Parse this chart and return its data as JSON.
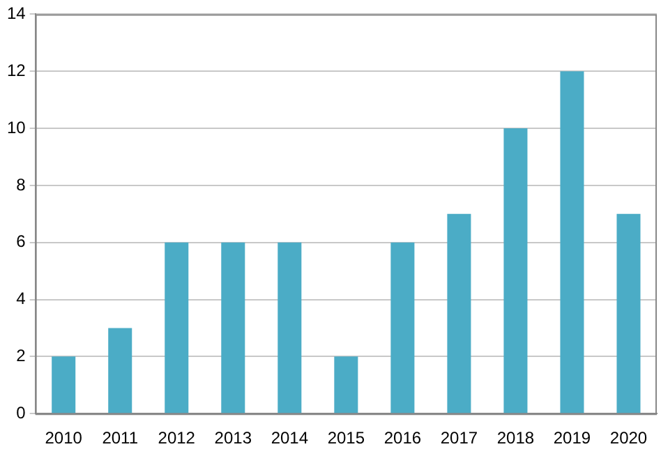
{
  "chart_data": {
    "type": "bar",
    "categories": [
      "2010",
      "2011",
      "2012",
      "2013",
      "2014",
      "2015",
      "2016",
      "2017",
      "2018",
      "2019",
      "2020"
    ],
    "values": [
      2,
      3,
      6,
      6,
      6,
      2,
      6,
      7,
      10,
      12,
      7
    ],
    "color": "#4bacc6",
    "ylim": [
      0,
      14
    ],
    "yticks": [
      0,
      2,
      4,
      6,
      8,
      10,
      12,
      14
    ],
    "grid": "y",
    "legend": false
  }
}
